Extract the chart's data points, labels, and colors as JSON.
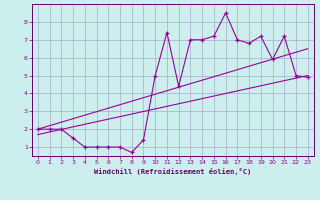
{
  "xlabel": "Windchill (Refroidissement éolien,°C)",
  "bg_color": "#cceeed",
  "grid_color": "#aaaacc",
  "line_color": "#990099",
  "xlim": [
    -0.5,
    23.5
  ],
  "ylim": [
    0.5,
    9.0
  ],
  "xticks": [
    0,
    1,
    2,
    3,
    4,
    5,
    6,
    7,
    8,
    9,
    10,
    11,
    12,
    13,
    14,
    15,
    16,
    17,
    18,
    19,
    20,
    21,
    22,
    23
  ],
  "yticks": [
    1,
    2,
    3,
    4,
    5,
    6,
    7,
    8
  ],
  "data_x": [
    0,
    1,
    2,
    3,
    4,
    5,
    6,
    7,
    8,
    9,
    10,
    11,
    12,
    13,
    14,
    15,
    16,
    17,
    18,
    19,
    20,
    21,
    22,
    23
  ],
  "data_y": [
    2.0,
    2.0,
    2.0,
    1.5,
    1.0,
    1.0,
    1.0,
    1.0,
    0.7,
    1.4,
    5.0,
    7.4,
    4.4,
    7.0,
    7.0,
    7.2,
    8.5,
    7.0,
    6.8,
    7.2,
    5.9,
    7.2,
    5.0,
    4.9
  ],
  "trend1_x": [
    0,
    23
  ],
  "trend1_y": [
    2.0,
    6.5
  ],
  "trend2_x": [
    0,
    23
  ],
  "trend2_y": [
    1.7,
    5.0
  ]
}
